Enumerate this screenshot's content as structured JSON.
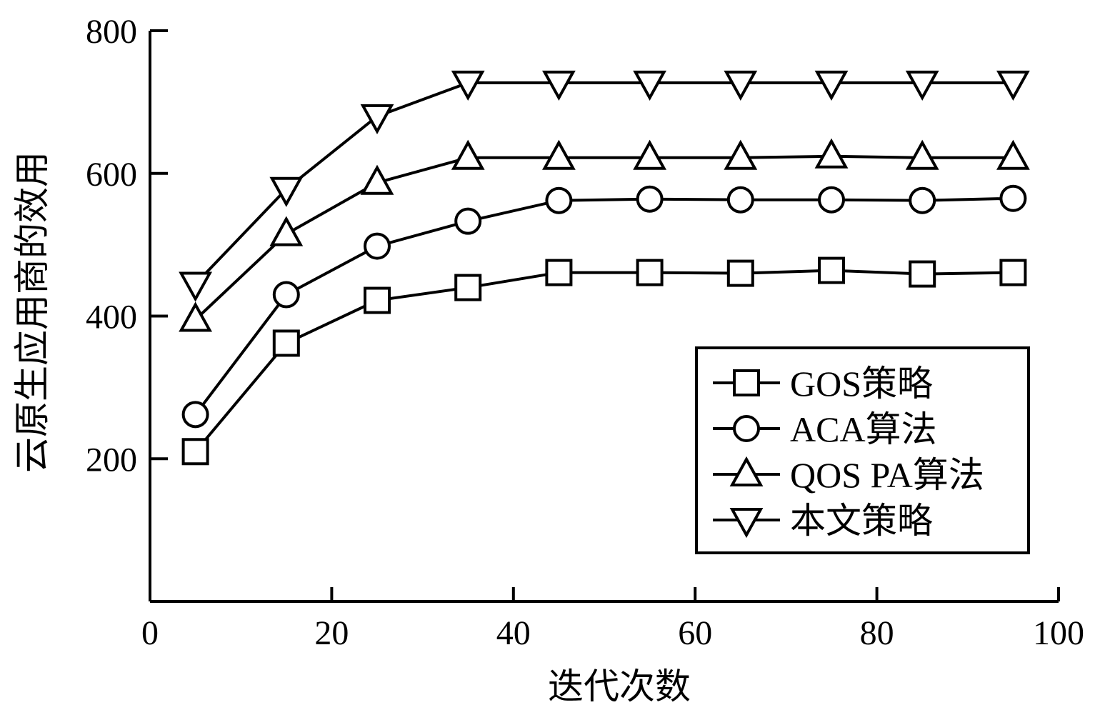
{
  "chart_data": {
    "type": "line",
    "title": "",
    "xlabel": "迭代次数",
    "ylabel": "云原生应用商的效用",
    "xlim": [
      0,
      100
    ],
    "ylim": [
      0,
      800
    ],
    "xticks": [
      0,
      20,
      40,
      60,
      80,
      100
    ],
    "yticks": [
      200,
      400,
      600,
      800
    ],
    "grid": false,
    "legend_position": "lower-right",
    "x": [
      5,
      15,
      25,
      35,
      45,
      55,
      65,
      75,
      85,
      95
    ],
    "series": [
      {
        "name": "GOS策略",
        "marker": "square",
        "values": [
          210,
          362,
          422,
          440,
          461,
          461,
          460,
          464,
          459,
          461
        ]
      },
      {
        "name": "ACA算法",
        "marker": "circle",
        "values": [
          262,
          430,
          498,
          533,
          562,
          564,
          563,
          563,
          562,
          565
        ]
      },
      {
        "name": "QOS PA算法",
        "marker": "triangle-up",
        "values": [
          395,
          515,
          587,
          622,
          622,
          622,
          622,
          624,
          622,
          622
        ]
      },
      {
        "name": "本文策略",
        "marker": "triangle-down",
        "values": [
          445,
          578,
          680,
          727,
          727,
          727,
          727,
          727,
          727,
          727
        ]
      }
    ]
  }
}
